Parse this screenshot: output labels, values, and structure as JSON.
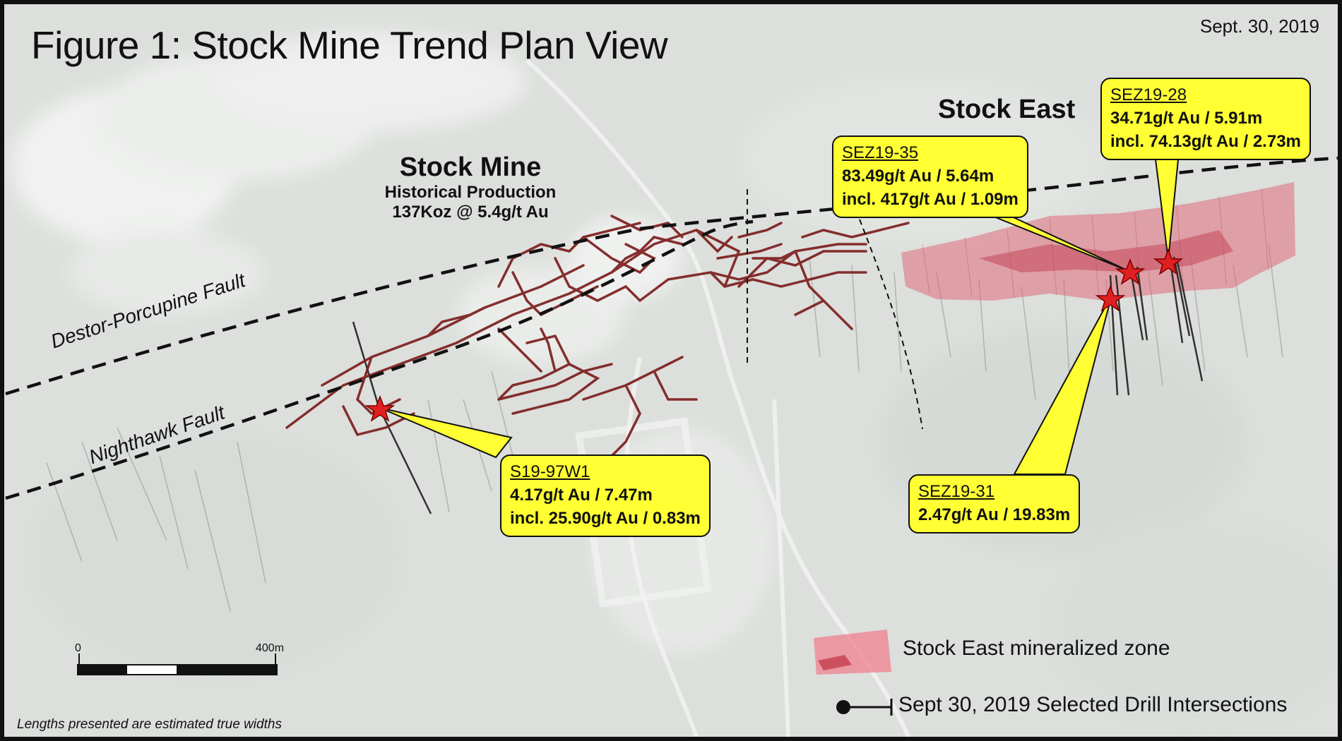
{
  "title": "Figure 1: Stock Mine Trend Plan View",
  "date": "Sept. 30, 2019",
  "sites": {
    "stock_mine": {
      "name": "Stock Mine",
      "sub1": "Historical Production",
      "sub2": "137Koz @ 5.4g/t Au"
    },
    "stock_east": {
      "name": "Stock East"
    }
  },
  "faults": {
    "destor": "Destor-Porcupine Fault",
    "nighthawk": "Nighthawk Fault"
  },
  "callouts": [
    {
      "hole": "S19-97W1",
      "lines": [
        "4.17g/t Au / 7.47m",
        "incl. 25.90g/t Au / 0.83m"
      ]
    },
    {
      "hole": "SEZ19-35",
      "lines": [
        "83.49g/t Au / 5.64m",
        "incl. 417g/t Au / 1.09m"
      ]
    },
    {
      "hole": "SEZ19-28",
      "lines": [
        "34.71g/t Au / 5.91m",
        "incl. 74.13g/t Au / 2.73m"
      ]
    },
    {
      "hole": "SEZ19-31",
      "lines": [
        "2.47g/t Au / 19.83m"
      ]
    }
  ],
  "scale": {
    "start": "0",
    "end": "400m"
  },
  "legend": {
    "zone": "Stock East mineralized zone",
    "drill": "Sept 30, 2019 Selected Drill Intersections"
  },
  "colors": {
    "callout_fill": "#ffff33",
    "workings": "#7a1a1a",
    "zone": "#e06070",
    "star": "#e02020"
  },
  "note": "Lengths presented are estimated true widths"
}
